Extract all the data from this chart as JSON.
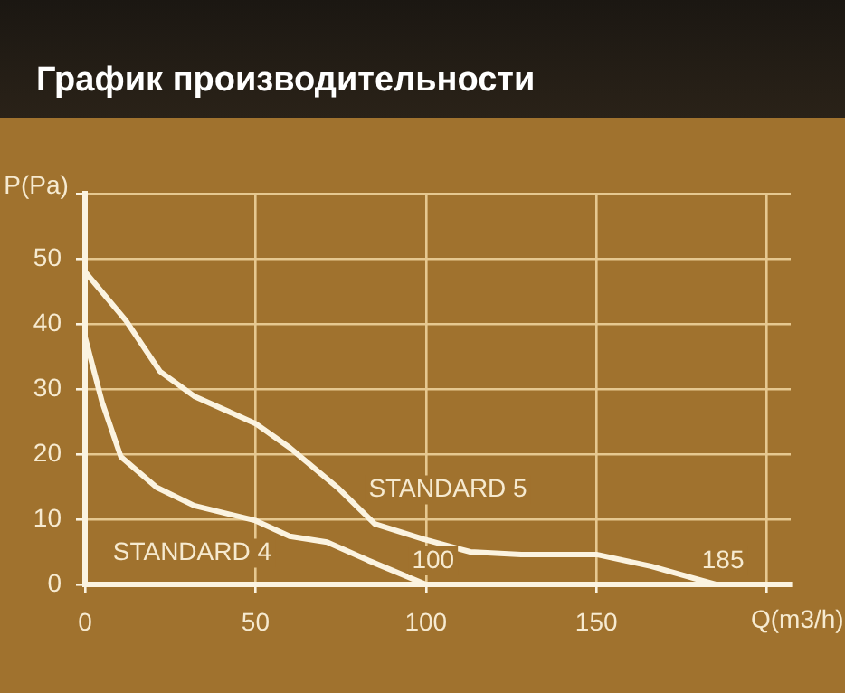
{
  "chart_data": {
    "type": "line",
    "title": "График производительности",
    "xlabel": "Q(m3/h)",
    "ylabel": "P(Pa)",
    "xlim": [
      0,
      207
    ],
    "xticks": [
      0,
      50,
      100,
      150,
      {
        "value": 200,
        "label": null
      }
    ],
    "ylim": [
      0,
      60
    ],
    "yticks": [
      0,
      10,
      20,
      30,
      40,
      50,
      {
        "value": 60,
        "label": null
      }
    ],
    "grid": true,
    "legend": false,
    "marker": "none",
    "line_style": "solid",
    "series": [
      {
        "name": "STANDARD 5",
        "color": "#fbf3e0",
        "x": [
          0,
          12,
          22,
          32,
          50,
          60,
          74,
          85,
          99,
          113,
          128,
          150,
          166,
          185
        ],
        "values": [
          48,
          40.5,
          32.7,
          28.9,
          24.7,
          21,
          14.9,
          9.3,
          7,
          5,
          4.6,
          4.6,
          2.8,
          0
        ]
      },
      {
        "name": "STANDARD 4",
        "color": "#fbf3e0",
        "x": [
          0,
          5,
          10.5,
          21,
          32,
          50,
          60,
          71,
          83,
          100
        ],
        "values": [
          38,
          28,
          19.6,
          14.9,
          12.1,
          9.8,
          7.4,
          6.5,
          3.7,
          0
        ]
      }
    ],
    "annotations": [
      {
        "text": "100",
        "x": 100,
        "y": 0
      },
      {
        "text": "185",
        "x": 185,
        "y": 0
      }
    ]
  }
}
